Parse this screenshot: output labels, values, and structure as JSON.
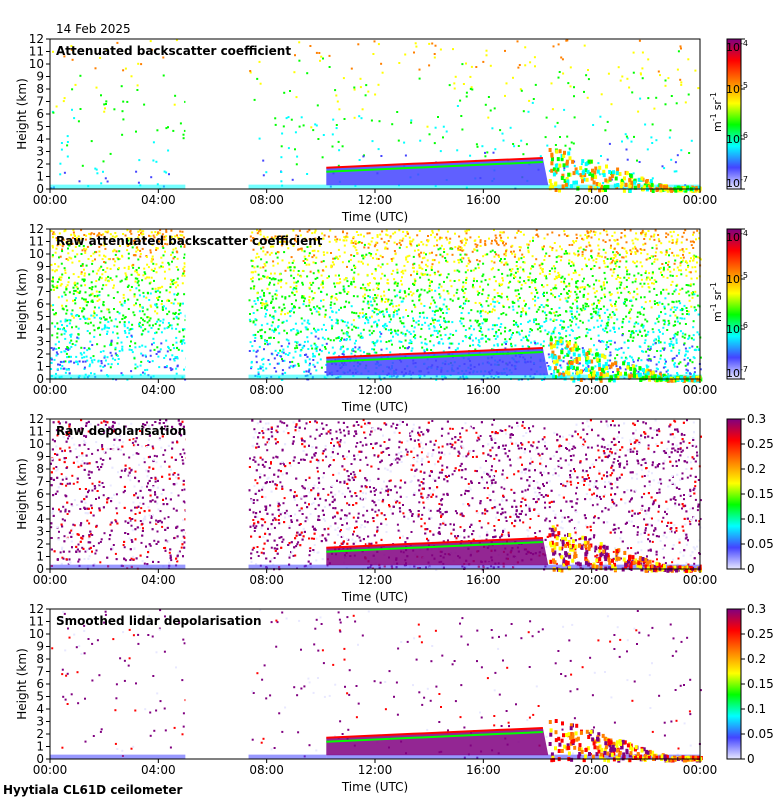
{
  "date": "14 Feb 2025",
  "footer": "Hyytiala CL61D ceilometer",
  "colormap": [
    "#e8e8ff",
    "#4444ff",
    "#00ffff",
    "#00ff00",
    "#ffff00",
    "#ff8000",
    "#ff0000",
    "#800080"
  ],
  "chart_data": [
    {
      "type": "heatmap",
      "title": "Attenuated backscatter coefficient",
      "xlabel": "Time (UTC)",
      "ylabel": "Height (km)",
      "xticks": [
        "00:00",
        "04:00",
        "08:00",
        "12:00",
        "16:00",
        "20:00",
        "00:00"
      ],
      "xlim_hours": [
        0,
        24
      ],
      "yticks": [
        0,
        1,
        2,
        3,
        4,
        5,
        6,
        7,
        8,
        9,
        10,
        11,
        12
      ],
      "ylim_km": [
        0,
        12
      ],
      "colorbar": {
        "scale": "log",
        "ticks": [
          {
            "base": "10",
            "exp": "-7"
          },
          {
            "base": "10",
            "exp": "-6"
          },
          {
            "base": "10",
            "exp": "-5"
          },
          {
            "base": "10",
            "exp": "-4"
          }
        ],
        "units": {
          "m": "m",
          "m_exp": "-1",
          "sr": "sr",
          "sr_exp": "-1"
        }
      },
      "data_gaps_hours": [
        [
          5.0,
          7.33
        ]
      ],
      "features": {
        "cloud_layer_km": [
          [
            10.2,
            1.7
          ],
          [
            18.4,
            2.5
          ]
        ],
        "noise_level": 0.08
      }
    },
    {
      "type": "heatmap",
      "title": "Raw attenuated backscatter coefficient",
      "xlabel": "Time (UTC)",
      "ylabel": "Height (km)",
      "xticks": [
        "00:00",
        "04:00",
        "08:00",
        "12:00",
        "16:00",
        "20:00",
        "00:00"
      ],
      "xlim_hours": [
        0,
        24
      ],
      "yticks": [
        0,
        1,
        2,
        3,
        4,
        5,
        6,
        7,
        8,
        9,
        10,
        11,
        12
      ],
      "ylim_km": [
        0,
        12
      ],
      "colorbar": {
        "scale": "log",
        "ticks": [
          {
            "base": "10",
            "exp": "-7"
          },
          {
            "base": "10",
            "exp": "-6"
          },
          {
            "base": "10",
            "exp": "-5"
          },
          {
            "base": "10",
            "exp": "-4"
          }
        ],
        "units": {
          "m": "m",
          "m_exp": "-1",
          "sr": "sr",
          "sr_exp": "-1"
        }
      },
      "data_gaps_hours": [
        [
          5.0,
          7.33
        ]
      ],
      "features": {
        "cloud_layer_km": [
          [
            10.2,
            1.7
          ],
          [
            18.4,
            2.5
          ]
        ],
        "noise_level": 0.9
      }
    },
    {
      "type": "heatmap",
      "title": "Raw depolarisation",
      "xlabel": "Time (UTC)",
      "ylabel": "Height (km)",
      "xticks": [
        "00:00",
        "04:00",
        "08:00",
        "12:00",
        "16:00",
        "20:00",
        "00:00"
      ],
      "xlim_hours": [
        0,
        24
      ],
      "yticks": [
        0,
        1,
        2,
        3,
        4,
        5,
        6,
        7,
        8,
        9,
        10,
        11,
        12
      ],
      "ylim_km": [
        0,
        12
      ],
      "colorbar": {
        "scale": "linear",
        "ticks": [
          "0",
          "0.05",
          "0.1",
          "0.15",
          "0.2",
          "0.25",
          "0.3"
        ],
        "range": [
          0,
          0.3
        ]
      },
      "data_gaps_hours": [
        [
          5.0,
          7.33
        ]
      ],
      "features": {
        "cloud_layer_km": [
          [
            10.2,
            1.7
          ],
          [
            18.4,
            2.5
          ]
        ],
        "noise_level": 0.95
      }
    },
    {
      "type": "heatmap",
      "title": "Smoothed lidar depolarisation",
      "xlabel": "Time (UTC)",
      "ylabel": "Height (km)",
      "xticks": [
        "00:00",
        "04:00",
        "08:00",
        "12:00",
        "16:00",
        "20:00",
        "00:00"
      ],
      "xlim_hours": [
        0,
        24
      ],
      "yticks": [
        0,
        1,
        2,
        3,
        4,
        5,
        6,
        7,
        8,
        9,
        10,
        11,
        12
      ],
      "ylim_km": [
        0,
        12
      ],
      "colorbar": {
        "scale": "linear",
        "ticks": [
          "0",
          "0.05",
          "0.1",
          "0.15",
          "0.2",
          "0.25",
          "0.3"
        ],
        "range": [
          0,
          0.3
        ]
      },
      "data_gaps_hours": [
        [
          5.0,
          7.33
        ]
      ],
      "features": {
        "cloud_layer_km": [
          [
            10.2,
            1.7
          ],
          [
            18.4,
            2.5
          ]
        ],
        "noise_level": 0.05
      }
    }
  ]
}
